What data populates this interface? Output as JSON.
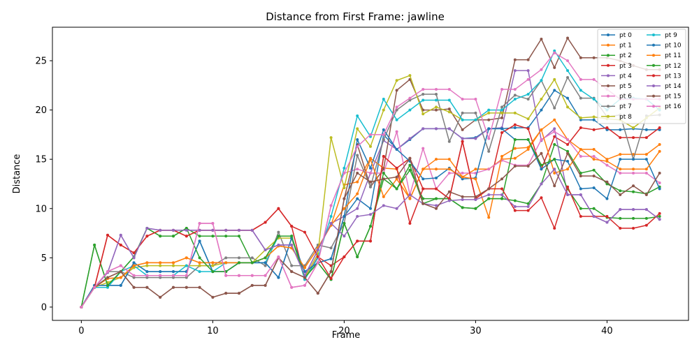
{
  "chart_data": {
    "type": "line",
    "title": "Distance from First Frame: jawline",
    "xlabel": "Frame",
    "ylabel": "Distance",
    "xlim": [
      -2.2,
      46.2
    ],
    "ylim": [
      -1.35,
      28.4
    ],
    "xticks": [
      0,
      10,
      20,
      30,
      40
    ],
    "yticks": [
      0,
      5,
      10,
      15,
      20,
      25
    ],
    "grid": false,
    "legend": {
      "position": "top-right",
      "columns": 2
    },
    "x": [
      0,
      1,
      2,
      3,
      4,
      5,
      6,
      7,
      8,
      9,
      10,
      11,
      12,
      13,
      14,
      15,
      16,
      17,
      18,
      19,
      20,
      21,
      22,
      23,
      24,
      25,
      26,
      27,
      28,
      29,
      30,
      31,
      32,
      33,
      34,
      35,
      36,
      37,
      38,
      39,
      40,
      41,
      42,
      43,
      44
    ],
    "series": [
      {
        "name": "pt 0",
        "color": "#1f77b4",
        "values": [
          0,
          2.2,
          2.2,
          2.2,
          4.5,
          3.6,
          3.6,
          3.6,
          3.6,
          6.7,
          3.6,
          3.6,
          4.5,
          4.5,
          4.5,
          3.0,
          7.0,
          3.6,
          4.5,
          4.9,
          9.2,
          11.0,
          10.0,
          17.5,
          16.0,
          17.0,
          18.1,
          18.1,
          18.1,
          17.1,
          17.2,
          18.1,
          18.1,
          18.2,
          18.2,
          20.0,
          22.0,
          21.2,
          19.0,
          19.0,
          18.0,
          18.0,
          18.1,
          18.0,
          18.0
        ]
      },
      {
        "name": "pt 1",
        "color": "#ff7f0e",
        "values": [
          0,
          2.0,
          2.9,
          3.0,
          4.2,
          4.5,
          4.5,
          4.5,
          5.0,
          4.5,
          4.5,
          4.5,
          4.5,
          4.5,
          5.0,
          6.2,
          6.0,
          4.0,
          6.0,
          8.3,
          12.4,
          12.7,
          15.1,
          14.1,
          14.0,
          11.0,
          14.0,
          15.0,
          15.0,
          13.2,
          14.0,
          14.0,
          15.0,
          15.1,
          16.0,
          18.0,
          19.0,
          17.0,
          16.0,
          16.0,
          15.0,
          15.5,
          15.5,
          15.5,
          16.5
        ]
      },
      {
        "name": "pt 2",
        "color": "#2ca02c",
        "values": [
          0,
          6.3,
          2.2,
          3.6,
          5.1,
          8.0,
          7.2,
          7.2,
          8.0,
          7.2,
          7.2,
          7.2,
          7.2,
          4.5,
          5.0,
          7.2,
          7.2,
          3.0,
          4.5,
          2.8,
          8.5,
          5.1,
          8.2,
          13.0,
          12.0,
          13.9,
          11.0,
          11.0,
          11.0,
          10.1,
          10.0,
          11.0,
          11.0,
          10.8,
          10.5,
          12.5,
          16.5,
          15.8,
          13.6,
          13.9,
          12.5,
          11.8,
          11.7,
          11.5,
          12.2
        ]
      },
      {
        "name": "pt 3",
        "color": "#d62728",
        "values": [
          0,
          2.0,
          7.3,
          6.3,
          5.5,
          7.2,
          7.8,
          7.8,
          7.2,
          7.8,
          7.8,
          7.8,
          7.8,
          7.8,
          8.6,
          10.0,
          8.2,
          2.8,
          5.1,
          4.2,
          5.1,
          6.7,
          6.7,
          15.3,
          14.1,
          15.1,
          12.0,
          12.0,
          11.0,
          16.8,
          11.0,
          12.0,
          17.7,
          18.5,
          18.1,
          14.0,
          17.3,
          16.5,
          18.2,
          18.0,
          18.2,
          17.2,
          17.2,
          17.2,
          18.2
        ]
      },
      {
        "name": "pt 4",
        "color": "#9467bd",
        "values": [
          0,
          2.0,
          3.5,
          7.3,
          5.0,
          8.0,
          7.8,
          7.8,
          7.8,
          7.8,
          7.8,
          7.8,
          7.8,
          7.8,
          5.8,
          6.3,
          6.3,
          3.2,
          5.8,
          8.5,
          9.2,
          10.0,
          13.6,
          16.9,
          16.0,
          17.1,
          18.1,
          18.1,
          18.1,
          17.1,
          17.1,
          18.1,
          18.2,
          24.0,
          24.0,
          16.9,
          18.1,
          11.4,
          11.4,
          9.2,
          8.6,
          9.9,
          9.9,
          9.9,
          8.9
        ]
      },
      {
        "name": "pt 5",
        "color": "#8c564b",
        "values": [
          0,
          2.0,
          3.0,
          3.6,
          2.0,
          2.0,
          1.0,
          2.0,
          2.0,
          2.0,
          1.0,
          1.4,
          1.4,
          2.2,
          2.2,
          5.0,
          3.6,
          3.0,
          1.4,
          3.6,
          11.0,
          16.5,
          12.2,
          14.0,
          22.0,
          23.1,
          20.0,
          20.0,
          20.1,
          18.0,
          19.0,
          19.0,
          19.2,
          25.1,
          25.1,
          27.2,
          24.3,
          27.3,
          25.3,
          25.3,
          25.3,
          25.0,
          24.5,
          24.1,
          24.1
        ]
      },
      {
        "name": "pt 6",
        "color": "#e377c2",
        "values": [
          0,
          2.0,
          3.6,
          4.2,
          3.2,
          3.2,
          3.2,
          3.2,
          3.2,
          8.5,
          8.5,
          3.2,
          3.2,
          3.2,
          3.2,
          5.1,
          2.0,
          2.2,
          4.5,
          10.3,
          13.6,
          14.0,
          13.6,
          13.6,
          17.8,
          11.4,
          16.1,
          12.0,
          13.6,
          13.6,
          13.6,
          14.0,
          14.9,
          14.4,
          14.4,
          17.0,
          17.8,
          17.0,
          15.3,
          15.3,
          14.4,
          13.6,
          13.6,
          13.6,
          12.6
        ]
      },
      {
        "name": "pt 7",
        "color": "#7f7f7f",
        "values": [
          0,
          2.0,
          3.6,
          3.6,
          3.0,
          3.0,
          3.0,
          3.0,
          3.0,
          4.2,
          4.2,
          5.0,
          5.0,
          5.0,
          4.2,
          7.6,
          4.2,
          4.2,
          6.3,
          6.0,
          8.5,
          15.4,
          12.2,
          17.0,
          20.0,
          21.0,
          21.6,
          21.6,
          16.8,
          19.7,
          19.7,
          15.8,
          20.3,
          21.5,
          21.1,
          23.0,
          20.2,
          23.3,
          21.2,
          21.2,
          19.3,
          19.5,
          15.0,
          19.4,
          19.5
        ]
      },
      {
        "name": "pt 8",
        "color": "#bcbd22",
        "values": [
          0,
          2.0,
          2.5,
          3.0,
          4.0,
          4.2,
          4.2,
          4.2,
          4.2,
          4.2,
          4.2,
          4.5,
          4.5,
          4.5,
          5.8,
          7.0,
          7.0,
          3.0,
          5.4,
          17.2,
          12.1,
          18.1,
          16.3,
          20.0,
          23.0,
          23.5,
          19.6,
          20.3,
          19.8,
          19.0,
          19.0,
          19.7,
          19.7,
          19.7,
          19.1,
          21.1,
          23.1,
          20.3,
          19.2,
          19.3,
          19.1,
          19.0,
          18.2,
          19.2,
          20.2
        ]
      },
      {
        "name": "pt 9",
        "color": "#17becf",
        "values": [
          0,
          2.0,
          2.0,
          3.6,
          4.2,
          3.2,
          3.2,
          3.2,
          4.2,
          3.6,
          3.6,
          4.5,
          4.5,
          4.5,
          4.5,
          7.2,
          7.2,
          2.8,
          5.0,
          9.2,
          14.1,
          19.4,
          17.3,
          21.1,
          19.0,
          20.0,
          21.0,
          21.0,
          21.0,
          19.0,
          19.0,
          20.0,
          20.0,
          21.1,
          21.6,
          23.0,
          26.0,
          24.0,
          22.0,
          21.1,
          20.0,
          21.1,
          21.2,
          21.1,
          20.0
        ]
      },
      {
        "name": "pt 10",
        "color": "#1f77b4",
        "values": [
          0,
          2.2,
          2.2,
          2.2,
          4.5,
          3.6,
          3.6,
          3.6,
          3.6,
          6.7,
          3.6,
          3.6,
          4.5,
          4.5,
          4.5,
          3.0,
          7.0,
          3.6,
          4.5,
          4.9,
          9.2,
          17.0,
          14.1,
          18.0,
          16.0,
          14.8,
          13.0,
          13.1,
          14.1,
          13.0,
          13.1,
          18.1,
          18.1,
          17.0,
          17.0,
          14.0,
          15.0,
          14.8,
          12.0,
          12.1,
          11.0,
          15.0,
          15.0,
          15.0,
          12.0
        ]
      },
      {
        "name": "pt 11",
        "color": "#ff7f0e",
        "values": [
          0,
          2.0,
          2.9,
          3.0,
          4.2,
          4.5,
          4.5,
          4.5,
          5.0,
          4.5,
          4.5,
          4.5,
          4.5,
          4.5,
          5.0,
          6.2,
          6.0,
          4.0,
          6.0,
          8.3,
          10.0,
          11.5,
          15.0,
          11.2,
          13.0,
          11.0,
          14.0,
          14.0,
          14.0,
          13.2,
          13.0,
          9.1,
          15.3,
          16.1,
          16.2,
          18.0,
          13.6,
          14.0,
          16.0,
          15.0,
          14.8,
          14.0,
          14.0,
          14.0,
          15.8
        ]
      },
      {
        "name": "pt 12",
        "color": "#2ca02c",
        "values": [
          0,
          6.3,
          2.2,
          3.6,
          5.1,
          8.0,
          7.2,
          7.2,
          8.0,
          5.0,
          3.6,
          3.6,
          4.5,
          4.5,
          5.0,
          7.2,
          7.2,
          3.0,
          4.5,
          2.8,
          8.5,
          5.1,
          8.2,
          13.6,
          12.0,
          14.4,
          10.5,
          11.0,
          11.0,
          10.1,
          10.0,
          11.0,
          11.0,
          17.0,
          17.0,
          14.4,
          15.0,
          12.0,
          10.0,
          10.0,
          9.1,
          9.0,
          9.0,
          9.0,
          9.2
        ]
      },
      {
        "name": "pt 13",
        "color": "#d62728",
        "values": [
          0,
          2.0,
          7.3,
          6.3,
          5.5,
          7.2,
          7.8,
          7.8,
          7.2,
          7.8,
          7.8,
          7.8,
          7.8,
          7.8,
          8.6,
          10.0,
          8.2,
          7.6,
          5.1,
          2.9,
          5.1,
          6.7,
          6.7,
          15.3,
          14.1,
          8.5,
          12.0,
          12.0,
          11.0,
          16.8,
          11.0,
          12.0,
          12.0,
          9.8,
          9.8,
          11.1,
          8.0,
          12.2,
          9.2,
          9.2,
          9.2,
          8.0,
          8.0,
          8.3,
          9.5
        ]
      },
      {
        "name": "pt 14",
        "color": "#9467bd",
        "values": [
          0,
          2.0,
          3.5,
          7.3,
          5.0,
          8.0,
          7.8,
          7.8,
          7.8,
          7.8,
          7.8,
          7.8,
          7.8,
          7.8,
          5.8,
          6.3,
          6.3,
          3.2,
          5.8,
          8.5,
          7.2,
          9.2,
          9.4,
          10.3,
          10.0,
          11.4,
          10.5,
          10.3,
          10.8,
          10.9,
          10.9,
          11.4,
          11.4,
          10.2,
          10.2,
          12.5,
          14.0,
          11.4,
          11.4,
          9.2,
          8.6,
          9.9,
          9.9,
          9.9,
          8.9
        ]
      },
      {
        "name": "pt 15",
        "color": "#8c564b",
        "values": [
          0,
          2.0,
          3.0,
          3.6,
          2.0,
          2.0,
          1.0,
          2.0,
          2.0,
          2.0,
          1.0,
          1.4,
          1.4,
          2.2,
          2.2,
          5.0,
          3.6,
          3.0,
          1.4,
          3.6,
          11.0,
          13.6,
          12.7,
          13.0,
          13.2,
          15.1,
          10.5,
          10.0,
          11.7,
          11.2,
          11.2,
          12.0,
          13.0,
          14.3,
          14.3,
          15.6,
          12.3,
          15.6,
          13.3,
          13.3,
          12.7,
          11.4,
          12.3,
          11.4,
          13.6
        ]
      },
      {
        "name": "pt 16",
        "color": "#e377c2",
        "values": [
          0,
          2.0,
          3.6,
          4.2,
          3.2,
          3.2,
          3.2,
          3.2,
          3.2,
          8.5,
          8.5,
          3.2,
          3.2,
          3.2,
          3.2,
          5.1,
          2.0,
          2.2,
          4.5,
          10.3,
          13.6,
          16.3,
          17.5,
          17.5,
          20.3,
          21.2,
          22.1,
          22.1,
          22.1,
          21.1,
          21.1,
          17.1,
          22.1,
          22.1,
          23.1,
          24.1,
          25.8,
          25.0,
          23.1,
          23.1,
          22.1,
          21.1,
          21.1,
          21.1,
          21.1
        ]
      }
    ]
  }
}
